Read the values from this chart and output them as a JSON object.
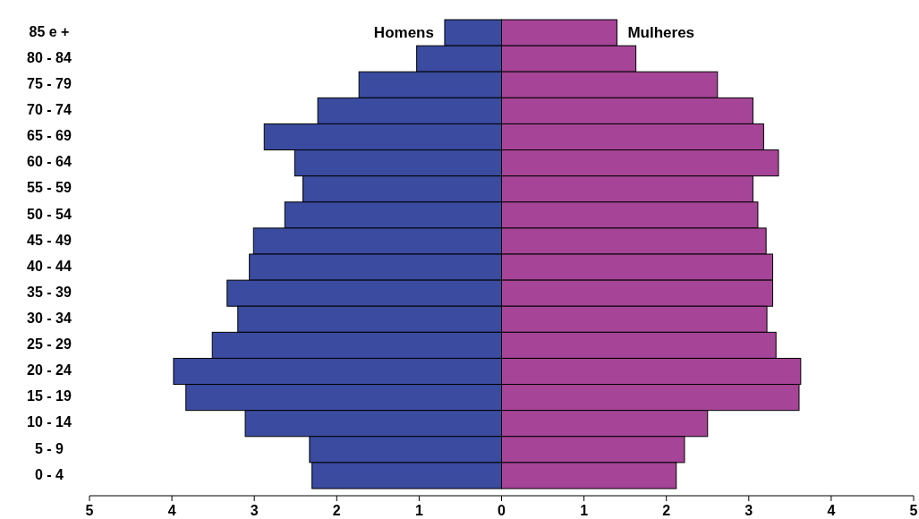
{
  "chart_data": {
    "type": "bar",
    "orientation": "horizontal",
    "categories": [
      "85 e +",
      "80 - 84",
      "75 - 79",
      "70 - 74",
      "65 - 69",
      "60 - 64",
      "55 - 59",
      "50 - 54",
      "45 - 49",
      "40 - 44",
      "35 - 39",
      "30 - 34",
      "25 - 29",
      "20 - 24",
      "15 - 19",
      "10 - 14",
      "5 - 9",
      "0 - 4"
    ],
    "series": [
      {
        "name": "Homens",
        "color": "#3a4ba0",
        "values": [
          -0.69,
          -1.03,
          -1.73,
          -2.23,
          -2.88,
          -2.51,
          -2.41,
          -2.63,
          -3.01,
          -3.06,
          -3.33,
          -3.2,
          -3.51,
          -3.98,
          -3.83,
          -3.11,
          -2.33,
          -2.3
        ]
      },
      {
        "name": "Mulheres",
        "color": "#a64497",
        "values": [
          1.4,
          1.63,
          2.62,
          3.05,
          3.18,
          3.36,
          3.05,
          3.11,
          3.21,
          3.29,
          3.29,
          3.22,
          3.33,
          3.63,
          3.61,
          2.5,
          2.22,
          2.12
        ]
      }
    ],
    "xlim": [
      -5,
      5
    ],
    "xticks": [
      {
        "value": -5,
        "label": "5"
      },
      {
        "value": -4,
        "label": "4"
      },
      {
        "value": -3,
        "label": "3"
      },
      {
        "value": -2,
        "label": "2"
      },
      {
        "value": -1,
        "label": "1"
      },
      0,
      1,
      2,
      3,
      4,
      5
    ],
    "stacked": true,
    "grid": false,
    "legend": false
  }
}
